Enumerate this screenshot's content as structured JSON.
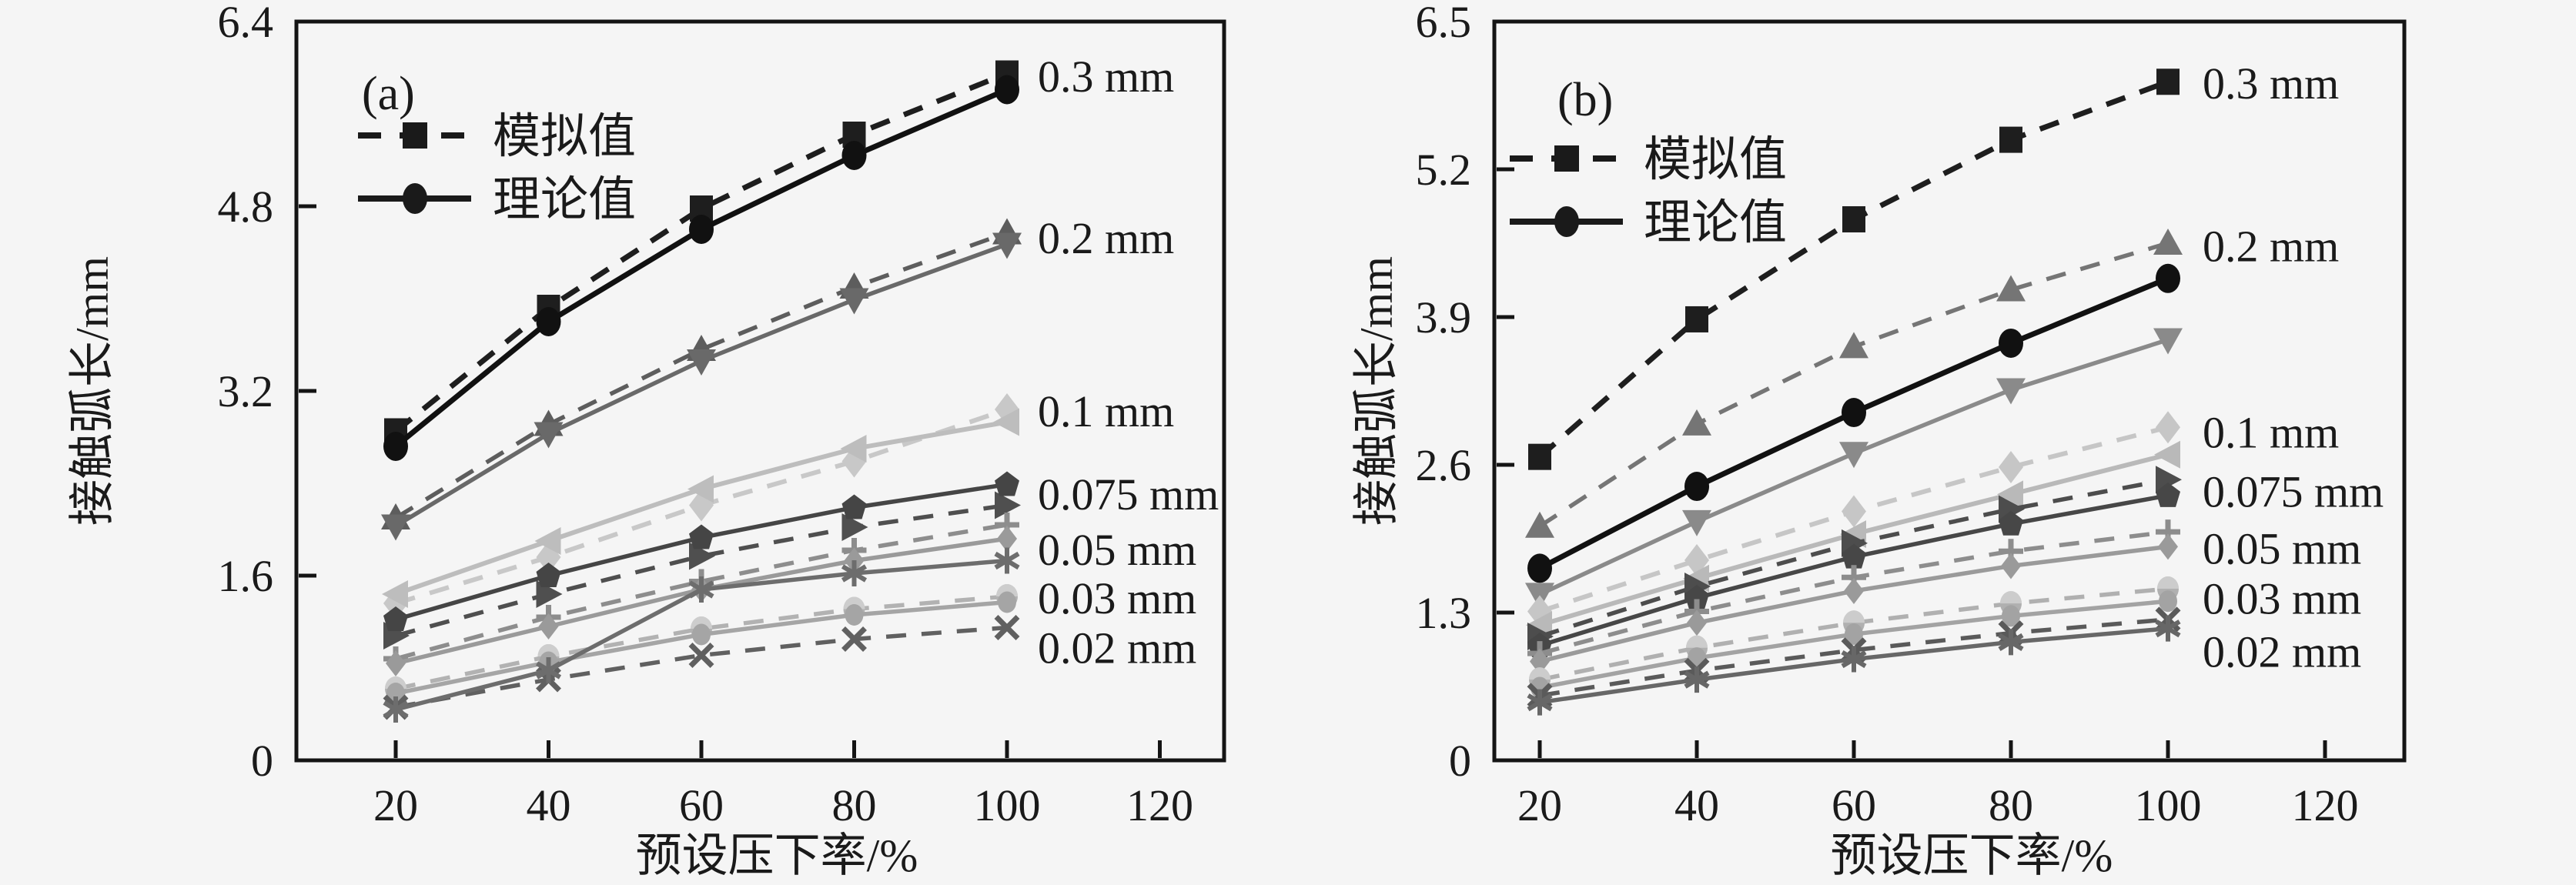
{
  "figure": {
    "background": "#f5f5f5",
    "frame_color": "#141414",
    "text_color": "#1a1a1a"
  },
  "chart_data": [
    {
      "type": "line",
      "panel_tag": "(a)",
      "xlabel": "预设压下率/%",
      "ylabel": "接触弧长/mm",
      "x": [
        20,
        40,
        60,
        80,
        100
      ],
      "x_ticks": [
        20,
        40,
        60,
        80,
        100,
        120
      ],
      "y_ticks": [
        "0",
        "1.6",
        "3.2",
        "4.8",
        "6.4"
      ],
      "y_tick_values": [
        0,
        1.6,
        3.2,
        4.8,
        6.4
      ],
      "ylim": [
        0,
        6.4
      ],
      "grid": false,
      "legend_position": "upper-left-inside",
      "legend": [
        {
          "label": "模拟值",
          "style": "dashed",
          "marker": "square"
        },
        {
          "label": "理论值",
          "style": "solid",
          "marker": "circle"
        }
      ],
      "series": [
        {
          "group": "0.3 mm",
          "kind": "simulated",
          "marker": "square",
          "line": "dashed",
          "color": "#1e1e1e",
          "width": 7,
          "values": [
            2.85,
            3.92,
            4.78,
            5.42,
            5.95
          ]
        },
        {
          "group": "0.3 mm",
          "kind": "theoretical",
          "marker": "circle",
          "line": "solid",
          "color": "#111111",
          "width": 7,
          "values": [
            2.72,
            3.8,
            4.6,
            5.24,
            5.81
          ]
        },
        {
          "group": "0.2 mm",
          "kind": "simulated",
          "marker": "triangle-up",
          "line": "dashed",
          "color": "#5d5d5d",
          "width": 5.5,
          "values": [
            2.1,
            2.91,
            3.56,
            4.1,
            4.57
          ]
        },
        {
          "group": "0.2 mm",
          "kind": "theoretical",
          "marker": "triangle-down",
          "line": "solid",
          "color": "#696969",
          "width": 5.5,
          "values": [
            2.03,
            2.83,
            3.46,
            3.99,
            4.47
          ]
        },
        {
          "group": "0.1 mm",
          "kind": "simulated",
          "marker": "diamond",
          "line": "dashed",
          "color": "#c8c8c8",
          "width": 6,
          "values": [
            1.36,
            1.76,
            2.21,
            2.59,
            3.04
          ]
        },
        {
          "group": "0.1 mm",
          "kind": "theoretical",
          "marker": "triangle-left",
          "line": "solid",
          "color": "#bdbdbd",
          "width": 6,
          "values": [
            1.44,
            1.9,
            2.35,
            2.7,
            2.93
          ]
        },
        {
          "group": "0.075 mm",
          "kind": "simulated",
          "marker": "triangle-right",
          "line": "dashed",
          "color": "#4f4f4f",
          "width": 5.5,
          "values": [
            1.08,
            1.44,
            1.77,
            2.02,
            2.21
          ]
        },
        {
          "group": "0.075 mm",
          "kind": "theoretical",
          "marker": "pentagon",
          "line": "solid",
          "color": "#454545",
          "width": 5.5,
          "values": [
            1.22,
            1.6,
            1.93,
            2.19,
            2.39
          ]
        },
        {
          "group": "0.05 mm",
          "kind": "simulated",
          "marker": "plus",
          "line": "dashed",
          "color": "#8d8d8d",
          "width": 5.5,
          "values": [
            0.88,
            1.24,
            1.55,
            1.82,
            2.04
          ]
        },
        {
          "group": "0.05 mm",
          "kind": "theoretical",
          "marker": "diamond-small",
          "line": "solid",
          "color": "#9a9a9a",
          "width": 5.5,
          "values": [
            0.84,
            1.16,
            1.48,
            1.73,
            1.92
          ]
        },
        {
          "group": "0.03 mm",
          "kind": "simulated",
          "marker": "circle-half",
          "line": "dashed",
          "color": "#b2b2b2",
          "width": 5.5,
          "values": [
            0.62,
            0.9,
            1.14,
            1.31,
            1.42
          ]
        },
        {
          "group": "0.03 mm",
          "kind": "theoretical",
          "marker": "circle-small",
          "line": "solid",
          "color": "#a5a5a5",
          "width": 5.5,
          "values": [
            0.58,
            0.85,
            1.09,
            1.26,
            1.37
          ]
        },
        {
          "group": "0.02 mm",
          "kind": "simulated",
          "marker": "x",
          "line": "dashed",
          "color": "#606060",
          "width": 5.5,
          "values": [
            0.46,
            0.7,
            0.91,
            1.05,
            1.15
          ]
        },
        {
          "group": "0.02 mm",
          "kind": "theoretical",
          "marker": "asterisk",
          "line": "solid",
          "color": "#6d6d6d",
          "width": 5.5,
          "values": [
            0.44,
            0.78,
            1.48,
            1.62,
            1.73
          ]
        }
      ],
      "series_labels": [
        {
          "text": "0.3 mm",
          "y": 5.92,
          "color": "#1f1f1f"
        },
        {
          "text": "0.2 mm",
          "y": 4.52,
          "color": "#7c7c7c"
        },
        {
          "text": "0.1 mm",
          "y": 3.02,
          "color": "#c9c9c9"
        },
        {
          "text": "0.075 mm",
          "y": 2.3,
          "color": "#5a5a5a"
        },
        {
          "text": "0.05 mm",
          "y": 1.82,
          "color": "#909090"
        },
        {
          "text": "0.03 mm",
          "y": 1.4,
          "color": "#a9a9a9"
        },
        {
          "text": "0.02 mm",
          "y": 0.97,
          "color": "#707070"
        }
      ]
    },
    {
      "type": "line",
      "panel_tag": "(b)",
      "xlabel": "预设压下率/%",
      "ylabel": "接触弧长/mm",
      "x": [
        20,
        40,
        60,
        80,
        100
      ],
      "x_ticks": [
        20,
        40,
        60,
        80,
        100,
        120
      ],
      "y_ticks": [
        "0",
        "1.3",
        "2.6",
        "3.9",
        "5.2",
        "6.5"
      ],
      "y_tick_values": [
        0,
        1.3,
        2.6,
        3.9,
        5.2,
        6.5
      ],
      "ylim": [
        0,
        6.5
      ],
      "grid": false,
      "legend_position": "upper-left-inside",
      "legend": [
        {
          "label": "模拟值",
          "style": "dashed",
          "marker": "square"
        },
        {
          "label": "理论值",
          "style": "solid",
          "marker": "circle"
        }
      ],
      "series": [
        {
          "group": "0.3 mm",
          "kind": "simulated",
          "marker": "square",
          "line": "dashed",
          "color": "#1e1e1e",
          "width": 7,
          "values": [
            2.67,
            3.88,
            4.76,
            5.46,
            5.97
          ]
        },
        {
          "group": "0.3 mm",
          "kind": "theoretical",
          "marker": "circle",
          "line": "solid",
          "color": "#111111",
          "width": 7,
          "values": [
            1.69,
            2.41,
            3.06,
            3.67,
            4.24
          ]
        },
        {
          "group": "0.2 mm",
          "kind": "simulated",
          "marker": "triangle-up",
          "line": "dashed",
          "color": "#757575",
          "width": 5.5,
          "values": [
            2.06,
            2.96,
            3.64,
            4.14,
            4.55
          ]
        },
        {
          "group": "0.2 mm",
          "kind": "theoretical",
          "marker": "triangle-down",
          "line": "solid",
          "color": "#8a8a8a",
          "width": 5.5,
          "values": [
            1.46,
            2.1,
            2.7,
            3.26,
            3.7
          ]
        },
        {
          "group": "0.1 mm",
          "kind": "simulated",
          "marker": "diamond",
          "line": "dashed",
          "color": "#c6c6c6",
          "width": 6,
          "values": [
            1.31,
            1.76,
            2.19,
            2.58,
            2.93
          ]
        },
        {
          "group": "0.1 mm",
          "kind": "theoretical",
          "marker": "triangle-left",
          "line": "solid",
          "color": "#b9b9b9",
          "width": 6,
          "values": [
            1.19,
            1.6,
            1.99,
            2.34,
            2.69
          ]
        },
        {
          "group": "0.075 mm",
          "kind": "simulated",
          "marker": "triangle-right",
          "line": "dashed",
          "color": "#4d4d4d",
          "width": 5.5,
          "values": [
            1.09,
            1.53,
            1.91,
            2.21,
            2.47
          ]
        },
        {
          "group": "0.075 mm",
          "kind": "theoretical",
          "marker": "pentagon",
          "line": "solid",
          "color": "#474747",
          "width": 5.5,
          "values": [
            1.01,
            1.43,
            1.79,
            2.08,
            2.33
          ]
        },
        {
          "group": "0.05 mm",
          "kind": "simulated",
          "marker": "plus",
          "line": "dashed",
          "color": "#8d8d8d",
          "width": 5.5,
          "values": [
            0.94,
            1.31,
            1.61,
            1.84,
            2.01
          ]
        },
        {
          "group": "0.05 mm",
          "kind": "theoretical",
          "marker": "diamond-small",
          "line": "solid",
          "color": "#9a9a9a",
          "width": 5.5,
          "values": [
            0.87,
            1.21,
            1.49,
            1.71,
            1.88
          ]
        },
        {
          "group": "0.03 mm",
          "kind": "simulated",
          "marker": "circle-half",
          "line": "dashed",
          "color": "#b0b0b0",
          "width": 5.5,
          "values": [
            0.71,
            0.99,
            1.21,
            1.38,
            1.51
          ]
        },
        {
          "group": "0.03 mm",
          "kind": "theoretical",
          "marker": "circle-small",
          "line": "solid",
          "color": "#a3a3a3",
          "width": 5.5,
          "values": [
            0.64,
            0.9,
            1.11,
            1.27,
            1.4
          ]
        },
        {
          "group": "0.02 mm",
          "kind": "simulated",
          "marker": "x",
          "line": "dashed",
          "color": "#5a5a5a",
          "width": 5.5,
          "values": [
            0.57,
            0.79,
            0.97,
            1.12,
            1.24
          ]
        },
        {
          "group": "0.02 mm",
          "kind": "theoretical",
          "marker": "asterisk",
          "line": "solid",
          "color": "#676767",
          "width": 5.5,
          "values": [
            0.51,
            0.71,
            0.89,
            1.04,
            1.16
          ]
        }
      ],
      "series_labels": [
        {
          "text": "0.3 mm",
          "y": 5.95,
          "color": "#1f1f1f"
        },
        {
          "text": "0.2 mm",
          "y": 4.52,
          "color": "#7c7c7c"
        },
        {
          "text": "0.1 mm",
          "y": 2.88,
          "color": "#c9c9c9"
        },
        {
          "text": "0.075 mm",
          "y": 2.36,
          "color": "#5a5a5a"
        },
        {
          "text": "0.05 mm",
          "y": 1.86,
          "color": "#909090"
        },
        {
          "text": "0.03 mm",
          "y": 1.42,
          "color": "#a9a9a9"
        },
        {
          "text": "0.02 mm",
          "y": 0.95,
          "color": "#707070"
        }
      ]
    }
  ]
}
